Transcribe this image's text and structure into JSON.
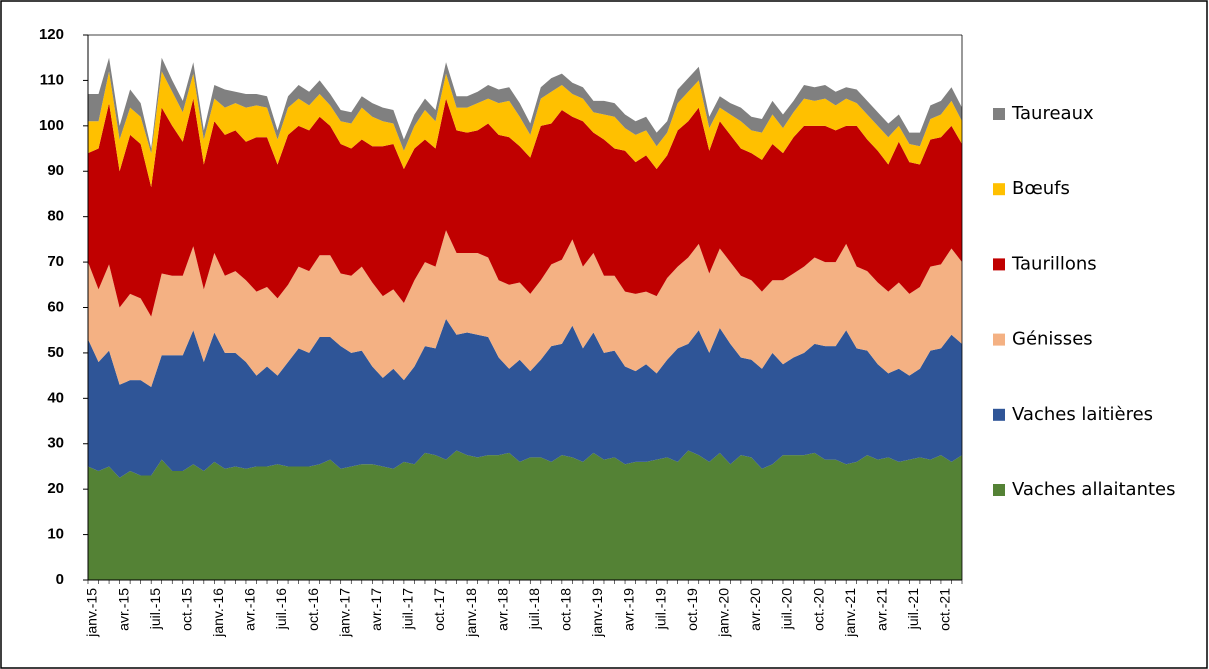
{
  "chart_data": {
    "type": "stacked_area",
    "categories": [
      "janv.-15",
      null,
      null,
      "avr.-15",
      null,
      null,
      "juil.-15",
      null,
      null,
      "oct.-15",
      null,
      null,
      "janv.-16",
      null,
      null,
      "avr.-16",
      null,
      null,
      "juil.-16",
      null,
      null,
      "oct.-16",
      null,
      null,
      "janv.-17",
      null,
      null,
      "avr.-17",
      null,
      null,
      "juil.-17",
      null,
      null,
      "oct.-17",
      null,
      null,
      "janv.-18",
      null,
      null,
      "avr.-18",
      null,
      null,
      "juil.-18",
      null,
      null,
      "oct.-18",
      null,
      null,
      "janv.-19",
      null,
      null,
      "avr.-19",
      null,
      null,
      "juil.-19",
      null,
      null,
      "oct.-19",
      null,
      null,
      "janv.-20",
      null,
      null,
      "avr.-20",
      null,
      null,
      "juil.-20",
      null,
      null,
      "oct.-20",
      null,
      null,
      "janv.-21",
      null,
      null,
      "avr.-21",
      null,
      null,
      "juil.-21",
      null,
      null,
      "oct.-21",
      null,
      null
    ],
    "series": [
      {
        "name": "Vaches allaitantes",
        "color": "#548235",
        "values": [
          25,
          24,
          25,
          22.5,
          24,
          23,
          23,
          26.5,
          24,
          24,
          25.5,
          24,
          26,
          24.5,
          25,
          24.5,
          25,
          25,
          25.5,
          25,
          25,
          25,
          25.5,
          26.5,
          24.5,
          25,
          25.5,
          25.5,
          25,
          24.5,
          26,
          25.5,
          28,
          27.5,
          26.5,
          28.5,
          27.5,
          27,
          27.5,
          27.5,
          28,
          26,
          27,
          27,
          26,
          27.5,
          27,
          26,
          28,
          26.5,
          27,
          25.5,
          26,
          26,
          26.5,
          27,
          26,
          28.5,
          27.5,
          26,
          28,
          25.5,
          27.5,
          27,
          24.5,
          25.5,
          27.5,
          27.5,
          27.5,
          28,
          26.5,
          26.5,
          25.5,
          26,
          27.5,
          26.5,
          27,
          26,
          26.5,
          27,
          26.5,
          27.5,
          26,
          27.5
        ]
      },
      {
        "name": "Vaches laitières",
        "color": "#2f5597",
        "values": [
          28,
          24,
          25.5,
          20.5,
          20,
          21,
          19.5,
          23,
          25.5,
          25.5,
          29.5,
          24,
          28.5,
          25.5,
          25,
          23.5,
          20,
          22,
          19.5,
          23,
          26,
          25,
          28,
          27,
          27,
          25,
          25,
          21.5,
          19.5,
          22,
          18,
          21.5,
          23.5,
          23.5,
          31,
          25.5,
          27,
          27,
          26,
          21.5,
          18.5,
          22.5,
          19,
          21.5,
          25.5,
          24.5,
          29,
          25,
          26.5,
          23.5,
          23.5,
          21.5,
          20,
          21.5,
          19,
          21.5,
          25,
          23.5,
          27.5,
          24,
          27.5,
          26.5,
          21.5,
          21.5,
          22,
          24.5,
          20,
          21.5,
          22.5,
          24,
          25,
          25,
          29.5,
          25,
          23,
          21,
          18.5,
          20.5,
          18.5,
          19.5,
          24,
          23.5,
          28,
          24.5
        ]
      },
      {
        "name": "Génisses",
        "color": "#f4b183",
        "values": [
          17,
          16,
          19,
          17,
          19,
          18,
          15.5,
          18,
          17.5,
          17.5,
          18.5,
          16,
          17.5,
          17,
          18,
          18,
          18.5,
          17.5,
          17,
          17,
          18,
          18,
          18,
          18,
          16,
          17,
          18.5,
          18.5,
          18,
          17.5,
          17,
          19,
          18.5,
          18,
          19.5,
          18,
          17.5,
          18,
          17.5,
          17,
          18.5,
          17,
          17,
          17.5,
          18,
          18.5,
          19,
          18,
          17.5,
          17,
          16.5,
          16.5,
          17,
          16,
          17,
          18,
          18,
          19,
          19,
          17.5,
          17.5,
          18,
          18,
          17.5,
          17,
          16,
          18.5,
          18.5,
          19,
          19,
          18.5,
          18.5,
          19,
          18,
          17.5,
          18,
          18,
          19,
          18,
          18,
          18.5,
          18.5,
          19,
          18
        ]
      },
      {
        "name": "Taurillons",
        "color": "#c00000",
        "values": [
          24,
          31,
          35.5,
          30,
          35,
          34,
          28.5,
          36.5,
          33,
          29.5,
          32.5,
          27.5,
          29,
          31,
          31,
          30.5,
          34,
          33,
          29.5,
          33,
          31,
          31,
          30.5,
          28.5,
          28.5,
          28,
          28,
          30,
          33,
          32,
          29.5,
          29,
          27,
          26,
          29,
          27,
          26.5,
          27,
          29.5,
          32,
          32.5,
          30,
          30,
          34,
          31,
          33,
          27,
          32,
          26.5,
          30,
          28,
          31,
          29,
          30,
          28,
          27,
          30,
          30,
          30,
          27,
          28,
          28,
          28,
          28,
          29,
          30,
          28,
          30,
          31,
          29,
          30,
          29,
          26,
          31,
          29,
          29,
          28,
          31,
          29,
          27,
          28,
          28,
          27,
          26
        ]
      },
      {
        "name": "Bœufs",
        "color": "#ffc000",
        "values": [
          7,
          6,
          7,
          7,
          6,
          6,
          7.5,
          8,
          7.5,
          6.5,
          5.5,
          5.5,
          5,
          6,
          6,
          7.5,
          7,
          6.5,
          5.5,
          6,
          6,
          5.5,
          5,
          4.5,
          5,
          5.5,
          7,
          6.5,
          5.5,
          4.5,
          4,
          5,
          6.5,
          6,
          5.5,
          5,
          5.5,
          6,
          5.5,
          7,
          8,
          6.5,
          5,
          6,
          7,
          5.5,
          5,
          5,
          4.5,
          5.5,
          7,
          5,
          6,
          5.5,
          5,
          5,
          6,
          6.5,
          6,
          5,
          3,
          4.5,
          6,
          5,
          6,
          6.5,
          5.5,
          5.5,
          6,
          5.5,
          6,
          5.5,
          6,
          5,
          5.5,
          5.5,
          6,
          3.5,
          4,
          4,
          4.5,
          5,
          5.5,
          5
        ]
      },
      {
        "name": "Taureaux",
        "color": "#808080",
        "values": [
          6,
          6,
          3,
          3,
          4,
          3,
          1,
          3,
          2.5,
          2.5,
          2.5,
          2,
          3,
          4,
          2.5,
          3,
          2.5,
          2.5,
          2,
          2.5,
          3,
          3,
          3,
          2.5,
          2.5,
          2.5,
          2.5,
          3,
          3,
          3,
          2.5,
          2.5,
          2.5,
          2.5,
          2.5,
          2.5,
          2.5,
          2.5,
          3,
          3,
          3,
          3,
          2.5,
          2.5,
          3,
          2.5,
          2.5,
          2.5,
          2.5,
          3,
          3,
          3,
          3,
          3,
          3,
          2.5,
          3,
          3,
          3,
          2.5,
          2.5,
          2.5,
          3,
          3,
          3,
          3,
          3,
          2.5,
          3,
          3,
          3,
          3,
          2.5,
          3,
          3,
          3,
          3,
          2.5,
          2.5,
          3,
          3,
          3,
          3,
          3
        ]
      }
    ],
    "ylim": [
      0,
      120
    ],
    "yticks": [
      0,
      10,
      20,
      30,
      40,
      50,
      60,
      70,
      80,
      90,
      100,
      110,
      120
    ],
    "legend": "right"
  }
}
